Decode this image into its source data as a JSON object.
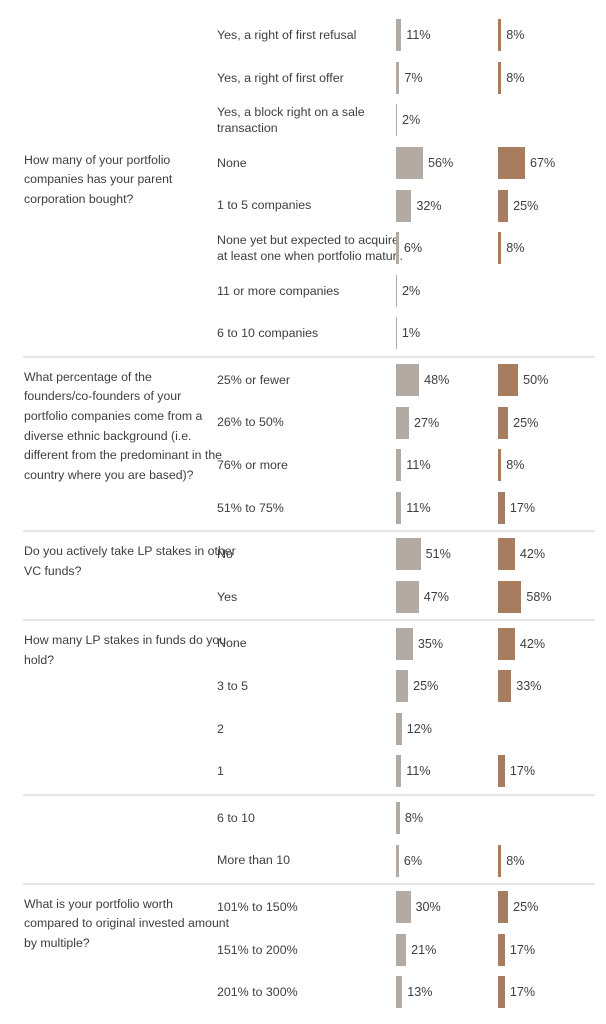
{
  "styles": {
    "background": "#ffffff",
    "bar1_color": "#b4aaa4",
    "bar2_color": "#a87c5e",
    "text_color": "#3e3e3e",
    "divider_color": "#e6e6e6"
  },
  "chart_data": {
    "type": "bar",
    "orientation": "horizontal",
    "columns": 2,
    "normalization": "per-column-max",
    "value_suffix": "%",
    "legend": null,
    "axes": "none (data labels only)",
    "sections": [
      {
        "question": "",
        "divider_before": false,
        "rows": [
          {
            "label": "Yes, a right of first refusal",
            "v1": 11,
            "v2": 8
          },
          {
            "label": "Yes, a right of first offer",
            "v1": 7,
            "v2": 8
          },
          {
            "label": "Yes, a block right on a sale\ntransaction",
            "v1": 2,
            "v2": null
          }
        ]
      },
      {
        "question": "How many of your portfolio\ncompanies has your parent\ncorporation bought?",
        "divider_before": false,
        "rows": [
          {
            "label": "None",
            "v1": 56,
            "v2": 67
          },
          {
            "label": "1 to 5 companies",
            "v1": 32,
            "v2": 25
          },
          {
            "label": "None yet but expected to acquire\nat least one when portfolio matur..",
            "v1": 6,
            "v2": 8
          },
          {
            "label": "11 or more companies",
            "v1": 2,
            "v2": null
          },
          {
            "label": "6 to 10 companies",
            "v1": 1,
            "v2": null
          }
        ]
      },
      {
        "question": "What percentage of the\nfounders/co-founders of your\nportfolio companies come from a\ndiverse ethnic background (i.e.\ndifferent from the predominant in the\ncountry where you are based)?",
        "divider_before": true,
        "rows": [
          {
            "label": "25% or fewer",
            "v1": 48,
            "v2": 50
          },
          {
            "label": "26% to 50%",
            "v1": 27,
            "v2": 25
          },
          {
            "label": "76% or more",
            "v1": 11,
            "v2": 8
          },
          {
            "label": "51% to 75%",
            "v1": 11,
            "v2": 17
          }
        ]
      },
      {
        "question": "Do you actively take LP stakes in other\nVC funds?",
        "divider_before": true,
        "rows": [
          {
            "label": "No",
            "v1": 51,
            "v2": 42
          },
          {
            "label": "Yes",
            "v1": 47,
            "v2": 58
          }
        ]
      },
      {
        "question": "How many LP stakes in funds do you\nhold?",
        "divider_before": true,
        "rows": [
          {
            "label": "None",
            "v1": 35,
            "v2": 42
          },
          {
            "label": "3 to 5",
            "v1": 25,
            "v2": 33
          },
          {
            "label": "2",
            "v1": 12,
            "v2": null
          },
          {
            "label": "1",
            "v1": 11,
            "v2": 17
          }
        ]
      },
      {
        "question": "",
        "divider_before": true,
        "rows": [
          {
            "label": "6 to 10",
            "v1": 8,
            "v2": null
          },
          {
            "label": "More than 10",
            "v1": 6,
            "v2": 8
          }
        ]
      },
      {
        "question": "What is your portfolio worth\ncompared to original invested amount\nby multiple?",
        "divider_before": true,
        "rows": [
          {
            "label": "101% to 150%",
            "v1": 30,
            "v2": 25
          },
          {
            "label": "151% to 200%",
            "v1": 21,
            "v2": 17
          },
          {
            "label": "201% to 300%",
            "v1": 13,
            "v2": 17
          }
        ]
      }
    ]
  }
}
